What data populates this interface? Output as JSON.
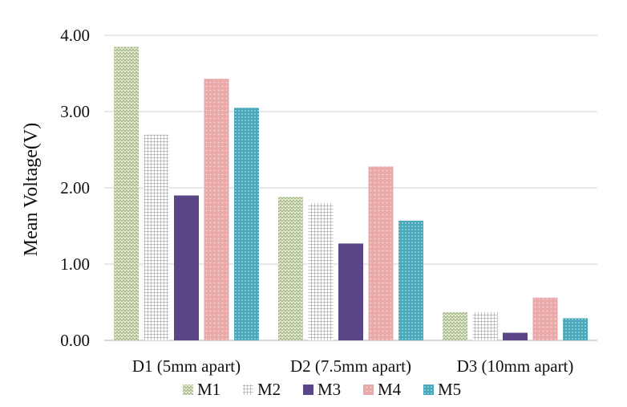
{
  "chart_data": {
    "type": "bar",
    "title": "",
    "xlabel": "",
    "ylabel": "Mean Voltage(V)",
    "ylim": [
      0,
      4
    ],
    "yticks": [
      "0.00",
      "1.00",
      "2.00",
      "3.00",
      "4.00"
    ],
    "grid": true,
    "legend_position": "bottom",
    "categories": [
      "D1 (5mm apart)",
      "D2 (7.5mm apart)",
      "D3 (10mm apart)"
    ],
    "series": [
      {
        "name": "M1",
        "values": [
          3.85,
          1.88,
          0.37
        ],
        "color": "#c8d4b0",
        "pattern": "zigzag"
      },
      {
        "name": "M2",
        "values": [
          2.7,
          1.8,
          0.37
        ],
        "color": "#b8b8b8",
        "pattern": "grid"
      },
      {
        "name": "M3",
        "values": [
          1.9,
          1.27,
          0.1
        ],
        "color": "#5b4687",
        "pattern": "solid"
      },
      {
        "name": "M4",
        "values": [
          3.43,
          2.28,
          0.56
        ],
        "color": "#e8a9a8",
        "pattern": "dots"
      },
      {
        "name": "M5",
        "values": [
          3.05,
          1.57,
          0.29
        ],
        "color": "#5bb3c4",
        "pattern": "dots"
      }
    ]
  }
}
